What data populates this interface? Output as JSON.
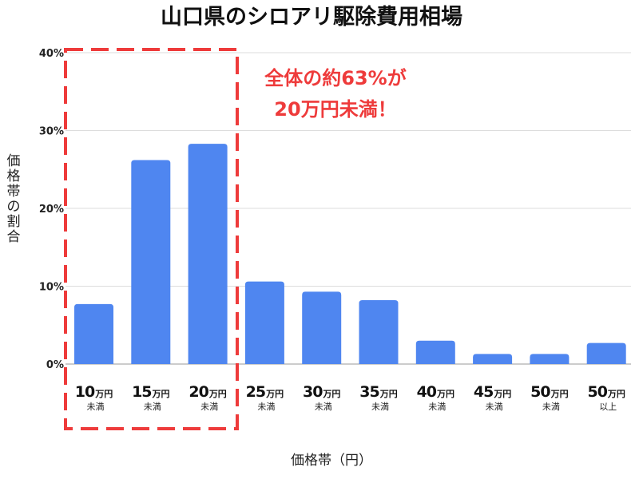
{
  "chart_data": {
    "type": "bar",
    "title": "山口県のシロアリ駆除費用相場",
    "xlabel": "価格帯（円）",
    "ylabel": "価格帯の割合",
    "ylim": [
      0,
      40
    ],
    "yticks": [
      "0%",
      "10%",
      "20%",
      "30%",
      "40%"
    ],
    "grid": true,
    "bar_color": "#4f86f0",
    "categories": [
      {
        "num": "10",
        "unit": "万円",
        "sub": "未満"
      },
      {
        "num": "15",
        "unit": "万円",
        "sub": "未満"
      },
      {
        "num": "20",
        "unit": "万円",
        "sub": "未満"
      },
      {
        "num": "25",
        "unit": "万円",
        "sub": "未満"
      },
      {
        "num": "30",
        "unit": "万円",
        "sub": "未満"
      },
      {
        "num": "35",
        "unit": "万円",
        "sub": "未満"
      },
      {
        "num": "40",
        "unit": "万円",
        "sub": "未満"
      },
      {
        "num": "45",
        "unit": "万円",
        "sub": "未満"
      },
      {
        "num": "50",
        "unit": "万円",
        "sub": "未満"
      },
      {
        "num": "50",
        "unit": "万円",
        "sub": "以上"
      }
    ],
    "values": [
      7.7,
      26.2,
      28.3,
      10.6,
      9.3,
      8.2,
      3.0,
      1.3,
      1.3,
      2.7
    ],
    "annotation": {
      "lines": [
        "全体の約63%が",
        "20万円未満！"
      ],
      "color": "#ee3b3b",
      "highlight_color": "#ee3b3b"
    }
  }
}
